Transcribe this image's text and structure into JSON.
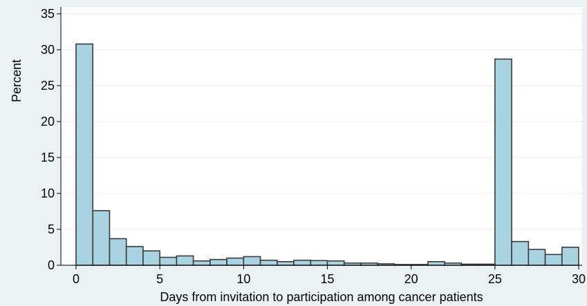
{
  "chart_data": {
    "type": "bar",
    "title": "",
    "xlabel": "Days from invitation to participation among cancer patients",
    "ylabel": "Percent",
    "xlim": [
      0,
      30
    ],
    "ylim": [
      0,
      35
    ],
    "xticks": [
      0,
      5,
      10,
      15,
      20,
      25,
      30
    ],
    "yticks": [
      0,
      5,
      10,
      15,
      20,
      25,
      30,
      35
    ],
    "grid": true,
    "legend": "none",
    "colors": {
      "bar_fill": "#a9d3e0",
      "bar_stroke": "#3a3a3a",
      "background": "#eaf2f3",
      "plot_background": "#ffffff",
      "grid": "#e6eef0"
    },
    "bin_width": 1.03,
    "bin_start": 0,
    "values": [
      30.8,
      7.6,
      3.7,
      2.6,
      2.0,
      1.1,
      1.3,
      0.6,
      0.8,
      1.0,
      1.2,
      0.7,
      0.5,
      0.7,
      0.65,
      0.6,
      0.3,
      0.3,
      0.2,
      0.1,
      0.1,
      0.5,
      0.3,
      0.15,
      0.15,
      28.7,
      3.3,
      2.2,
      1.5,
      2.5
    ]
  }
}
